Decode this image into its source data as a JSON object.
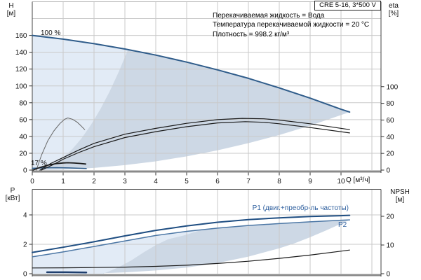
{
  "title_box": {
    "text": "CRE 5-16, 3*500 V"
  },
  "info": {
    "lines": [
      "Перекачиваемая жидкость = Вода",
      "Температура перекачиваемой жидкости = 20 °C",
      "Плотность = 998.2 кг/м³"
    ]
  },
  "axis_labels": {
    "top_left_1": "H",
    "top_left_2": "[м]",
    "top_right_1": "eta",
    "top_right_2": "[%]",
    "bottom_left_1": "P",
    "bottom_left_2": "[кВт]",
    "bottom_right_1": "NPSH",
    "bottom_right_2": "[м]",
    "x": "Q [м³/ч]"
  },
  "annotations": {
    "speed_100": "100 %",
    "speed_17": "17 %",
    "p1": "P1 (двиг.+преобр-ль частоты)",
    "p2": "P2"
  },
  "colors": {
    "curve_blue": "#2f5c8a",
    "p2_blue": "#4c77a5",
    "dark_navy": "#1f3f6e",
    "label_blue": "#2e5f9e",
    "fill_light": "#e2ebf6",
    "fill_dark": "#cdd8e5",
    "grid": "#c9c9c9",
    "axis_thick": "#8a8a8a"
  },
  "chart_data": [
    {
      "type": "line",
      "name": "head-efficiency-chart",
      "x": {
        "label": "Q [м³/ч]",
        "range": [
          0,
          11.3
        ],
        "ticks": [
          0,
          1,
          2,
          3,
          4,
          5,
          6,
          7,
          8,
          9,
          10
        ],
        "grid_max": 11
      },
      "y_left": {
        "label": "H [м]",
        "range": [
          0,
          200
        ],
        "ticks": [
          0,
          20,
          40,
          60,
          80,
          100,
          120,
          140,
          160
        ]
      },
      "y_right": {
        "label": "eta [%]",
        "range": [
          0,
          202
        ],
        "ticks": [
          0,
          20,
          40,
          60,
          80,
          100
        ]
      },
      "legend_position": "none",
      "series": [
        {
          "name": "head-100pct",
          "axis": "left",
          "color": "#2f5c8a",
          "width": 2,
          "points": [
            [
              0,
              160
            ],
            [
              1,
              155.6
            ],
            [
              2,
              150.2
            ],
            [
              3,
              143.9
            ],
            [
              4,
              136.6
            ],
            [
              5,
              128.3
            ],
            [
              6,
              119.1
            ],
            [
              7,
              109
            ],
            [
              8,
              97.6
            ],
            [
              9,
              85.5
            ],
            [
              10,
              72.3
            ],
            [
              10.28,
              68.9
            ]
          ]
        },
        {
          "name": "head-17pct",
          "axis": "left",
          "color": "#2f5c8a",
          "width": 1.5,
          "points": [
            [
              0,
              2.2
            ],
            [
              0.4,
              2.7
            ],
            [
              0.8,
              2.9
            ],
            [
              1.2,
              2.6
            ],
            [
              1.5,
              2.2
            ],
            [
              1.75,
              1.8
            ]
          ]
        },
        {
          "name": "eta-pump",
          "axis": "right",
          "color": "#1a1a1a",
          "width": 1.2,
          "points": [
            [
              0.25,
              0
            ],
            [
              0.6,
              8
            ],
            [
              1,
              15
            ],
            [
              1.5,
              24
            ],
            [
              2,
              32
            ],
            [
              3,
              43
            ],
            [
              4,
              50
            ],
            [
              5,
              56
            ],
            [
              6,
              60.5
            ],
            [
              6.8,
              62
            ],
            [
              7.5,
              61.5
            ],
            [
              8,
              60
            ],
            [
              9,
              55.5
            ],
            [
              10.28,
              48.5
            ]
          ]
        },
        {
          "name": "eta-pump-motor",
          "axis": "right",
          "color": "#1a1a1a",
          "width": 1.2,
          "points": [
            [
              0.3,
              0
            ],
            [
              0.7,
              7
            ],
            [
              1,
              13
            ],
            [
              1.5,
              21
            ],
            [
              2,
              28
            ],
            [
              3,
              39
            ],
            [
              4,
              46
            ],
            [
              5,
              52
            ],
            [
              6,
              56.5
            ],
            [
              6.9,
              58
            ],
            [
              7.5,
              57.3
            ],
            [
              8,
              55.5
            ],
            [
              9,
              51
            ],
            [
              10.28,
              44.5
            ]
          ]
        },
        {
          "name": "eta-17pct",
          "axis": "right",
          "color": "#666666",
          "width": 1,
          "points": [
            [
              0.13,
              0
            ],
            [
              0.3,
              18
            ],
            [
              0.5,
              35
            ],
            [
              0.7,
              47
            ],
            [
              0.9,
              56
            ],
            [
              1.05,
              61
            ],
            [
              1.15,
              62.5
            ],
            [
              1.3,
              61
            ],
            [
              1.45,
              57.5
            ],
            [
              1.58,
              53
            ],
            [
              1.7,
              48.5
            ]
          ]
        },
        {
          "name": "curve-17pct-aux",
          "axis": "left",
          "color": "#1a1a1a",
          "width": 1.8,
          "points": [
            [
              0.03,
              0.2
            ],
            [
              0.25,
              3.2
            ],
            [
              0.5,
              5.8
            ],
            [
              0.75,
              7.6
            ],
            [
              1,
              8.5
            ],
            [
              1.15,
              8.7
            ],
            [
              1.35,
              8.4
            ],
            [
              1.55,
              7.9
            ],
            [
              1.73,
              7.2
            ]
          ]
        }
      ],
      "fills": [
        {
          "name": "operating-range-light",
          "axis": "left",
          "color": "#e2ebf6",
          "points": [
            [
              0,
              0
            ],
            [
              0,
              160
            ],
            [
              1,
              155.6
            ],
            [
              2,
              150.2
            ],
            [
              3,
              143.9
            ],
            [
              3.1,
              143.2
            ],
            [
              2.8,
              116.8
            ],
            [
              2.5,
              93.1
            ],
            [
              2.2,
              72.1
            ],
            [
              1.9,
              53.8
            ],
            [
              1.6,
              38.1
            ],
            [
              1.3,
              25.2
            ],
            [
              1,
              14.9
            ],
            [
              0.7,
              7.3
            ],
            [
              0.4,
              2.4
            ],
            [
              0.15,
              0.3
            ]
          ]
        },
        {
          "name": "operating-range-dark",
          "axis": "left",
          "color": "#cdd8e5",
          "points": [
            [
              0.15,
              0.3
            ],
            [
              0.4,
              2.4
            ],
            [
              0.7,
              7.3
            ],
            [
              1,
              14.9
            ],
            [
              1.3,
              25.2
            ],
            [
              1.6,
              38.1
            ],
            [
              1.9,
              53.8
            ],
            [
              2.2,
              72.1
            ],
            [
              2.5,
              93.1
            ],
            [
              2.8,
              116.8
            ],
            [
              3.1,
              143.2
            ],
            [
              4,
              136.6
            ],
            [
              5,
              128.3
            ],
            [
              6,
              119.1
            ],
            [
              7,
              109
            ],
            [
              8,
              97.6
            ],
            [
              9,
              85.5
            ],
            [
              10,
              72.3
            ],
            [
              10.28,
              68.9
            ],
            [
              9,
              52.8
            ],
            [
              8,
              41.7
            ],
            [
              7,
              32
            ],
            [
              6,
              23.5
            ],
            [
              5,
              16.3
            ],
            [
              4,
              10.4
            ],
            [
              3,
              5.9
            ],
            [
              2,
              2.6
            ],
            [
              1,
              0.65
            ],
            [
              0.3,
              0.06
            ]
          ]
        }
      ]
    },
    {
      "type": "line",
      "name": "power-npsh-chart",
      "x": {
        "label": "Q [м³/ч]",
        "range": [
          0,
          11.3
        ],
        "ticks": [],
        "grid_max": 11
      },
      "y_left": {
        "label": "P [кВт]",
        "range": [
          0,
          5.7
        ],
        "ticks": [
          0,
          2,
          4
        ]
      },
      "y_right": {
        "label": "NPSH [м]",
        "range": [
          0,
          29
        ],
        "ticks": [
          0,
          10,
          20
        ]
      },
      "legend_position": "inline",
      "series": [
        {
          "name": "p1-power",
          "axis": "left",
          "color": "#1f4e82",
          "width": 2,
          "points": [
            [
              0,
              1.45
            ],
            [
              1,
              1.8
            ],
            [
              2,
              2.17
            ],
            [
              3,
              2.57
            ],
            [
              4,
              2.95
            ],
            [
              5,
              3.25
            ],
            [
              6,
              3.5
            ],
            [
              7,
              3.68
            ],
            [
              8,
              3.8
            ],
            [
              9,
              3.89
            ],
            [
              10,
              3.95
            ],
            [
              10.28,
              3.97
            ]
          ]
        },
        {
          "name": "p2-power",
          "axis": "left",
          "color": "#4c77a5",
          "width": 1.5,
          "points": [
            [
              0,
              1.15
            ],
            [
              1,
              1.48
            ],
            [
              2,
              1.85
            ],
            [
              3,
              2.23
            ],
            [
              4,
              2.6
            ],
            [
              5,
              2.88
            ],
            [
              6,
              3.1
            ],
            [
              7,
              3.28
            ],
            [
              8,
              3.41
            ],
            [
              9,
              3.53
            ],
            [
              10,
              3.64
            ],
            [
              10.28,
              3.66
            ]
          ]
        },
        {
          "name": "npsh-curve",
          "axis": "right",
          "color": "#1a1a1a",
          "width": 1.2,
          "points": [
            [
              0,
              2.0
            ],
            [
              1,
              2.05
            ],
            [
              2,
              2.15
            ],
            [
              3,
              2.3
            ],
            [
              4,
              2.55
            ],
            [
              5,
              2.95
            ],
            [
              6,
              3.55
            ],
            [
              7,
              4.35
            ],
            [
              8,
              5.35
            ],
            [
              9,
              6.5
            ],
            [
              10,
              7.85
            ],
            [
              10.28,
              8.25
            ]
          ]
        },
        {
          "name": "p-17pct",
          "axis": "left",
          "color": "#1f3f6e",
          "width": 2.5,
          "points": [
            [
              0.48,
              0.1
            ],
            [
              1.1,
              0.1
            ],
            [
              1.75,
              0.08
            ]
          ]
        }
      ],
      "fills": [
        {
          "name": "power-range-light",
          "axis": "left",
          "color": "#e2ebf6",
          "points": [
            [
              0,
              0
            ],
            [
              0,
              1.15
            ],
            [
              1,
              1.48
            ],
            [
              2,
              1.85
            ],
            [
              3,
              2.23
            ],
            [
              4,
              2.6
            ],
            [
              5,
              2.88
            ],
            [
              5.5,
              2.99
            ],
            [
              4.9,
              2.6
            ],
            [
              4.4,
              2.35
            ],
            [
              4,
              1.95
            ],
            [
              3.6,
              1.45
            ],
            [
              3.2,
              0.9
            ],
            [
              2.8,
              0.45
            ],
            [
              2.3,
              0
            ]
          ]
        },
        {
          "name": "power-range-dark",
          "axis": "left",
          "color": "#cdd8e5",
          "points": [
            [
              2.3,
              0
            ],
            [
              2.8,
              0.45
            ],
            [
              3.2,
              0.9
            ],
            [
              3.6,
              1.45
            ],
            [
              4,
              1.95
            ],
            [
              4.4,
              2.35
            ],
            [
              4.9,
              2.6
            ],
            [
              5.5,
              2.99
            ],
            [
              6,
              3.1
            ],
            [
              7,
              3.28
            ],
            [
              8,
              3.41
            ],
            [
              9,
              3.53
            ],
            [
              10.28,
              3.66
            ],
            [
              9.5,
              2.93
            ],
            [
              9,
              2.48
            ],
            [
              8.5,
              2.07
            ],
            [
              8,
              1.73
            ],
            [
              7,
              1.16
            ],
            [
              6,
              0.73
            ],
            [
              5,
              0.42
            ],
            [
              4,
              0.22
            ],
            [
              3,
              0.09
            ],
            [
              2.3,
              0.04
            ]
          ]
        }
      ]
    }
  ]
}
